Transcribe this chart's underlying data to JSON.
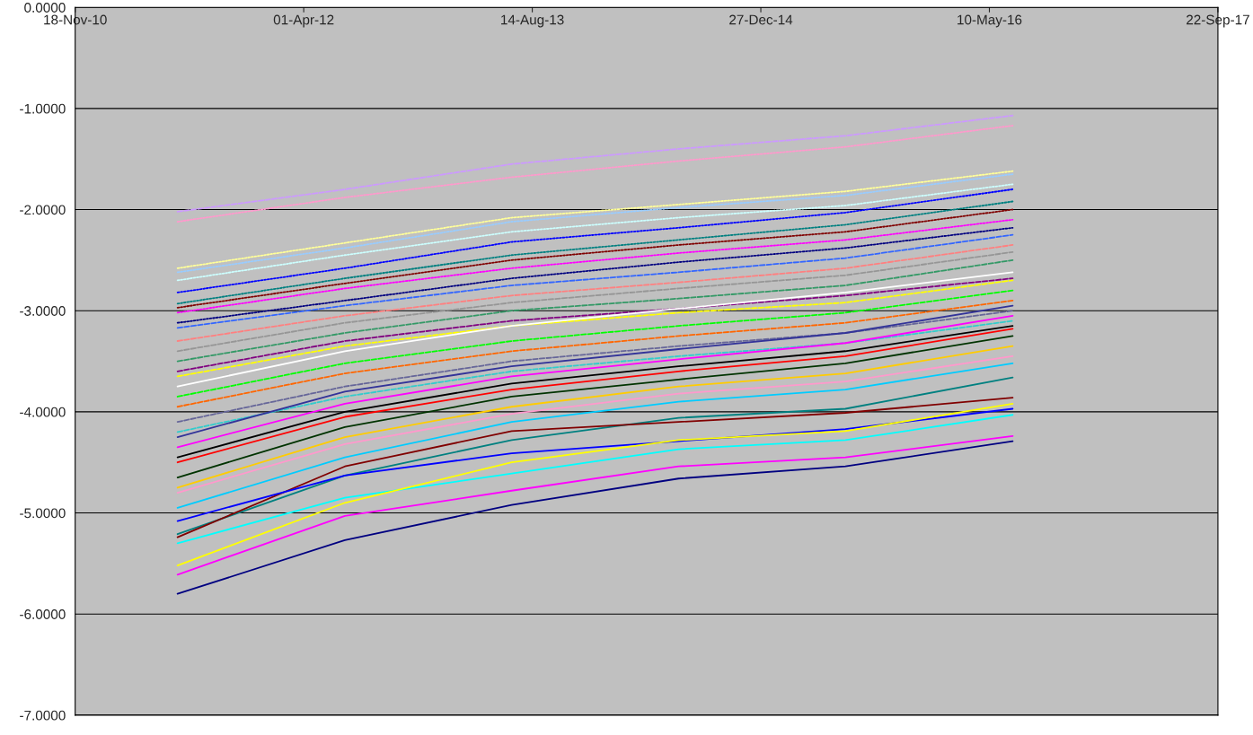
{
  "chart_data": {
    "type": "line",
    "x": [
      "2011-06-30",
      "2012-06-30",
      "2013-06-30",
      "2014-06-30",
      "2015-06-30",
      "2016-06-30"
    ],
    "xlim": [
      "2010-11-18",
      "2017-09-22"
    ],
    "xticks": [
      {
        "value": "2010-11-18",
        "label": "18-Nov-10"
      },
      {
        "value": "2012-04-01",
        "label": "01-Apr-12"
      },
      {
        "value": "2013-08-14",
        "label": "14-Aug-13"
      },
      {
        "value": "2014-12-27",
        "label": "27-Dec-14"
      },
      {
        "value": "2016-05-10",
        "label": "10-May-16"
      },
      {
        "value": "2017-09-22",
        "label": "22-Sep-17"
      }
    ],
    "ylim": [
      -7,
      0
    ],
    "yticks": [
      {
        "value": 0,
        "label": "0.0000"
      },
      {
        "value": -1,
        "label": "-1.0000"
      },
      {
        "value": -2,
        "label": "-2.0000"
      },
      {
        "value": -3,
        "label": "-3.0000"
      },
      {
        "value": -4,
        "label": "-4.0000"
      },
      {
        "value": -5,
        "label": "-5.0000"
      },
      {
        "value": -6,
        "label": "-6.0000"
      },
      {
        "value": -7,
        "label": "-7.0000"
      }
    ],
    "grid": "y",
    "legend": false,
    "series": [
      {
        "color": "#cc99ff",
        "line_style": "dashed",
        "values": [
          -2.02,
          -1.8,
          -1.55,
          -1.4,
          -1.27,
          -1.07
        ]
      },
      {
        "color": "#ff99cc",
        "line_style": "dotted",
        "values": [
          -2.12,
          -1.88,
          -1.68,
          -1.52,
          -1.38,
          -1.17
        ]
      },
      {
        "color": "#ffff99",
        "line_style": "dotted",
        "values": [
          -2.58,
          -2.33,
          -2.08,
          -1.95,
          -1.82,
          -1.62
        ]
      },
      {
        "color": "#99ccff",
        "line_style": "dotted",
        "values": [
          -2.62,
          -2.38,
          -2.12,
          -1.98,
          -1.86,
          -1.65
        ]
      },
      {
        "color": "#ccffff",
        "line_style": "dotted",
        "values": [
          -2.7,
          -2.45,
          -2.22,
          -2.08,
          -1.96,
          -1.75
        ]
      },
      {
        "color": "#0000ff",
        "line_style": "dotted",
        "values": [
          -2.82,
          -2.58,
          -2.32,
          -2.18,
          -2.03,
          -1.8
        ]
      },
      {
        "color": "#008080",
        "line_style": "dotted",
        "values": [
          -2.93,
          -2.68,
          -2.45,
          -2.3,
          -2.15,
          -1.92
        ]
      },
      {
        "color": "#800000",
        "line_style": "dotted",
        "values": [
          -2.97,
          -2.73,
          -2.5,
          -2.35,
          -2.22,
          -2.0
        ]
      },
      {
        "color": "#ff00ff",
        "line_style": "dotted",
        "values": [
          -3.02,
          -2.78,
          -2.58,
          -2.43,
          -2.3,
          -2.1
        ]
      },
      {
        "color": "#000080",
        "line_style": "dotted",
        "values": [
          -3.12,
          -2.9,
          -2.68,
          -2.52,
          -2.38,
          -2.18
        ]
      },
      {
        "color": "#3366ff",
        "line_style": "dashed",
        "values": [
          -3.17,
          -2.95,
          -2.75,
          -2.62,
          -2.48,
          -2.25
        ]
      },
      {
        "color": "#ff8080",
        "line_style": "dashed",
        "values": [
          -3.3,
          -3.05,
          -2.85,
          -2.72,
          -2.58,
          -2.35
        ]
      },
      {
        "color": "#969696",
        "line_style": "dashed",
        "values": [
          -3.4,
          -3.12,
          -2.92,
          -2.78,
          -2.65,
          -2.42
        ]
      },
      {
        "color": "#339966",
        "line_style": "dashed",
        "values": [
          -3.5,
          -3.22,
          -3.0,
          -2.88,
          -2.75,
          -2.5
        ]
      },
      {
        "color": "#800080",
        "line_style": "dashed",
        "values": [
          -3.6,
          -3.3,
          -3.1,
          -2.98,
          -2.85,
          -2.68
        ]
      },
      {
        "color": "#ffff00",
        "line_style": "dashed",
        "values": [
          -3.65,
          -3.35,
          -3.15,
          -3.02,
          -2.92,
          -2.7
        ]
      },
      {
        "color": "#ffffff",
        "line_style": "solid",
        "values": [
          -3.75,
          -3.4,
          -3.15,
          -2.98,
          -2.82,
          -2.62
        ]
      },
      {
        "color": "#00ff00",
        "line_style": "dashed",
        "values": [
          -3.85,
          -3.52,
          -3.3,
          -3.15,
          -3.02,
          -2.8
        ]
      },
      {
        "color": "#ff6600",
        "line_style": "dashed",
        "values": [
          -3.95,
          -3.62,
          -3.4,
          -3.25,
          -3.12,
          -2.9
        ]
      },
      {
        "color": "#666699",
        "line_style": "dashed",
        "values": [
          -4.1,
          -3.75,
          -3.5,
          -3.35,
          -3.22,
          -3.0
        ]
      },
      {
        "color": "#33cccc",
        "line_style": "dashed",
        "values": [
          -4.2,
          -3.85,
          -3.6,
          -3.45,
          -3.32,
          -3.1
        ]
      },
      {
        "color": "#333399",
        "line_style": "solid",
        "values": [
          -4.25,
          -3.8,
          -3.55,
          -3.38,
          -3.22,
          -2.95
        ]
      },
      {
        "color": "#ff00ff",
        "line_style": "solid",
        "values": [
          -4.35,
          -3.92,
          -3.65,
          -3.48,
          -3.32,
          -3.05
        ]
      },
      {
        "color": "#000000",
        "line_style": "solid",
        "values": [
          -4.45,
          -4.0,
          -3.72,
          -3.55,
          -3.4,
          -3.15
        ]
      },
      {
        "color": "#ff0000",
        "line_style": "solid",
        "values": [
          -4.5,
          -4.05,
          -3.78,
          -3.6,
          -3.45,
          -3.18
        ]
      },
      {
        "color": "#003300",
        "line_style": "solid",
        "values": [
          -4.65,
          -4.15,
          -3.85,
          -3.68,
          -3.52,
          -3.25
        ]
      },
      {
        "color": "#ffcc00",
        "line_style": "solid",
        "values": [
          -4.75,
          -4.25,
          -3.95,
          -3.75,
          -3.62,
          -3.35
        ]
      },
      {
        "color": "#ff99cc",
        "line_style": "solid",
        "values": [
          -4.8,
          -4.32,
          -4.02,
          -3.82,
          -3.7,
          -3.45
        ]
      },
      {
        "color": "#00ccff",
        "line_style": "solid",
        "values": [
          -4.95,
          -4.45,
          -4.1,
          -3.9,
          -3.78,
          -3.52
        ]
      },
      {
        "color": "#008080",
        "line_style": "solid",
        "values": [
          -5.21,
          -4.63,
          -4.28,
          -4.06,
          -3.97,
          -3.66
        ]
      },
      {
        "color": "#800000",
        "line_style": "solid",
        "values": [
          -5.24,
          -4.54,
          -4.19,
          -4.1,
          -4.01,
          -3.86
        ]
      },
      {
        "color": "#0000ff",
        "line_style": "solid",
        "values": [
          -5.08,
          -4.63,
          -4.41,
          -4.29,
          -4.17,
          -3.97
        ]
      },
      {
        "color": "#00ffff",
        "line_style": "solid",
        "values": [
          -5.3,
          -4.85,
          -4.61,
          -4.37,
          -4.28,
          -4.03
        ]
      },
      {
        "color": "#ffff00",
        "line_style": "solid",
        "values": [
          -5.52,
          -4.9,
          -4.5,
          -4.28,
          -4.19,
          -3.92
        ]
      },
      {
        "color": "#ff00ff",
        "line_style": "solid",
        "values": [
          -5.61,
          -5.03,
          -4.78,
          -4.54,
          -4.45,
          -4.24
        ]
      },
      {
        "color": "#000080",
        "line_style": "solid",
        "values": [
          -5.8,
          -5.27,
          -4.92,
          -4.66,
          -4.54,
          -4.29
        ]
      }
    ]
  }
}
